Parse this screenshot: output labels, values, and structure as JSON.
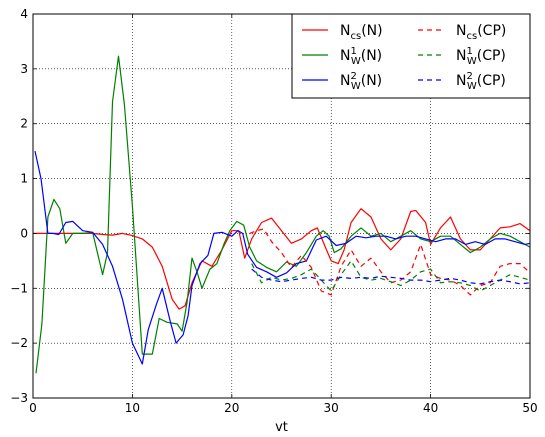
{
  "chart_data": {
    "type": "line",
    "xlabel": "vt",
    "ylabel": "",
    "xlim": [
      0,
      50
    ],
    "ylim": [
      -3,
      4
    ],
    "xticks": [
      "0",
      "10",
      "20",
      "30",
      "40",
      "50"
    ],
    "yticks": [
      "−3",
      "−2",
      "−1",
      "0",
      "1",
      "2",
      "3",
      "4"
    ],
    "grid": true,
    "legend_position": "top-right",
    "legend": [
      {
        "base": "N",
        "sub": "cs",
        "sup": "",
        "suffix": "(N)",
        "color": "#ff0000",
        "dash": "solid"
      },
      {
        "base": "N",
        "sub": "cs",
        "sup": "",
        "suffix": "(CP)",
        "color": "#ff0000",
        "dash": "dashed"
      },
      {
        "base": "N",
        "sub": "W",
        "sup": "1",
        "suffix": "(N)",
        "color": "#008000",
        "dash": "solid"
      },
      {
        "base": "N",
        "sub": "W",
        "sup": "1",
        "suffix": "(CP)",
        "color": "#008000",
        "dash": "dashed"
      },
      {
        "base": "N",
        "sub": "W",
        "sup": "2",
        "suffix": "(N)",
        "color": "#0000ff",
        "dash": "solid"
      },
      {
        "base": "N",
        "sub": "W",
        "sup": "2",
        "suffix": "(CP)",
        "color": "#0000ff",
        "dash": "dashed"
      }
    ],
    "series": [
      {
        "key": "ncs_n",
        "color": "#ff0000",
        "dash": "solid",
        "points": [
          [
            0,
            0
          ],
          [
            2,
            0
          ],
          [
            4,
            0
          ],
          [
            6,
            0
          ],
          [
            7,
            -0.02
          ],
          [
            8,
            -0.03
          ],
          [
            9,
            0
          ],
          [
            10,
            -0.04
          ],
          [
            11,
            -0.1
          ],
          [
            12,
            -0.25
          ],
          [
            13,
            -0.6
          ],
          [
            14,
            -1.2
          ],
          [
            14.7,
            -1.38
          ],
          [
            15.3,
            -1.32
          ],
          [
            16,
            -0.9
          ],
          [
            17,
            -0.5
          ],
          [
            18,
            -0.6
          ],
          [
            19,
            -0.3
          ],
          [
            20,
            0.05
          ],
          [
            20.7,
            0.05
          ],
          [
            21.3,
            -0.45
          ],
          [
            22,
            -0.1
          ],
          [
            23,
            0.2
          ],
          [
            24,
            0.28
          ],
          [
            25,
            0.05
          ],
          [
            26,
            -0.18
          ],
          [
            27,
            -0.1
          ],
          [
            28,
            0.05
          ],
          [
            28.6,
            0.1
          ],
          [
            29.3,
            -0.2
          ],
          [
            30,
            -0.5
          ],
          [
            30.7,
            -0.55
          ],
          [
            31.3,
            -0.3
          ],
          [
            32,
            0.2
          ],
          [
            33,
            0.45
          ],
          [
            34,
            0.3
          ],
          [
            35,
            -0.1
          ],
          [
            36,
            -0.3
          ],
          [
            37,
            -0.1
          ],
          [
            38,
            0.4
          ],
          [
            38.5,
            0.42
          ],
          [
            39.5,
            0.2
          ],
          [
            40,
            -0.2
          ],
          [
            41,
            0.1
          ],
          [
            42,
            0.3
          ],
          [
            43,
            -0.1
          ],
          [
            44,
            -0.3
          ],
          [
            45,
            -0.3
          ],
          [
            46,
            -0.1
          ],
          [
            47,
            0.1
          ],
          [
            48,
            0.12
          ],
          [
            49,
            0.18
          ],
          [
            50,
            0.05
          ]
        ]
      },
      {
        "key": "nw1_n",
        "color": "#008000",
        "dash": "solid",
        "points": [
          [
            0.3,
            -2.55
          ],
          [
            0.9,
            -1.65
          ],
          [
            1.5,
            0.3
          ],
          [
            2.1,
            0.62
          ],
          [
            2.7,
            0.45
          ],
          [
            3.3,
            -0.18
          ],
          [
            4,
            0
          ],
          [
            5,
            0
          ],
          [
            6,
            0.02
          ],
          [
            7,
            -0.75
          ],
          [
            7.5,
            -0.35
          ],
          [
            8,
            2.4
          ],
          [
            8.6,
            3.23
          ],
          [
            9.2,
            2.35
          ],
          [
            10,
            0.5
          ],
          [
            11,
            -2.2
          ],
          [
            12,
            -2.2
          ],
          [
            12.7,
            -1.55
          ],
          [
            13.5,
            -1.62
          ],
          [
            14.5,
            -1.65
          ],
          [
            15,
            -1.78
          ],
          [
            15.5,
            -1.25
          ],
          [
            16,
            -0.45
          ],
          [
            16.5,
            -0.7
          ],
          [
            17,
            -1.0
          ],
          [
            17.8,
            -0.65
          ],
          [
            18.5,
            -0.55
          ],
          [
            19.2,
            -0.2
          ],
          [
            19.8,
            0.05
          ],
          [
            20.5,
            0.22
          ],
          [
            21.2,
            0.15
          ],
          [
            21.8,
            -0.25
          ],
          [
            22.5,
            -0.5
          ],
          [
            23.5,
            -0.62
          ],
          [
            24.5,
            -0.7
          ],
          [
            25.5,
            -0.52
          ],
          [
            26.5,
            -0.6
          ],
          [
            27.5,
            -0.35
          ],
          [
            28.5,
            -0.05
          ],
          [
            29.2,
            0.05
          ],
          [
            29.8,
            -0.05
          ],
          [
            30.3,
            -0.35
          ],
          [
            31,
            -0.28
          ],
          [
            32,
            -0.05
          ],
          [
            33,
            0.1
          ],
          [
            34,
            -0.05
          ],
          [
            35,
            0
          ],
          [
            36,
            -0.15
          ],
          [
            37,
            -0.05
          ],
          [
            38,
            0.05
          ],
          [
            39,
            -0.1
          ],
          [
            40,
            -0.15
          ],
          [
            41,
            -0.05
          ],
          [
            42,
            -0.05
          ],
          [
            43,
            -0.2
          ],
          [
            44,
            -0.35
          ],
          [
            45,
            -0.25
          ],
          [
            46,
            -0.1
          ],
          [
            47,
            0
          ],
          [
            48,
            -0.05
          ],
          [
            49,
            -0.15
          ],
          [
            50,
            -0.25
          ]
        ]
      },
      {
        "key": "nw2_n",
        "color": "#0000ff",
        "dash": "solid",
        "points": [
          [
            0.2,
            1.5
          ],
          [
            0.8,
            1.0
          ],
          [
            1.5,
            0
          ],
          [
            2,
            0
          ],
          [
            2.6,
            -0.02
          ],
          [
            3.3,
            0.2
          ],
          [
            4,
            0.22
          ],
          [
            5,
            0.05
          ],
          [
            6,
            0.02
          ],
          [
            7,
            -0.2
          ],
          [
            8,
            -0.6
          ],
          [
            9,
            -1.2
          ],
          [
            10,
            -2.0
          ],
          [
            11,
            -2.38
          ],
          [
            11.6,
            -1.75
          ],
          [
            12.4,
            -1.3
          ],
          [
            13,
            -1.0
          ],
          [
            13.8,
            -1.6
          ],
          [
            14.4,
            -2.0
          ],
          [
            15.1,
            -1.85
          ],
          [
            15.6,
            -1.5
          ],
          [
            16,
            -0.95
          ],
          [
            16.8,
            -0.55
          ],
          [
            17.6,
            -0.4
          ],
          [
            18.2,
            0
          ],
          [
            19,
            0.02
          ],
          [
            20,
            -0.05
          ],
          [
            20.6,
            0.05
          ],
          [
            21.1,
            0
          ],
          [
            21.6,
            -0.38
          ],
          [
            22.5,
            -0.62
          ],
          [
            23.5,
            -0.7
          ],
          [
            24.5,
            -0.8
          ],
          [
            25.5,
            -0.72
          ],
          [
            26.5,
            -0.55
          ],
          [
            27.5,
            -0.5
          ],
          [
            28.5,
            -0.12
          ],
          [
            29.5,
            -0.05
          ],
          [
            30.5,
            -0.22
          ],
          [
            31.5,
            -0.18
          ],
          [
            32.5,
            -0.05
          ],
          [
            33.5,
            -0.08
          ],
          [
            34.5,
            -0.05
          ],
          [
            35.5,
            -0.05
          ],
          [
            36.5,
            -0.1
          ],
          [
            37.5,
            -0.05
          ],
          [
            38.5,
            -0.05
          ],
          [
            39.5,
            -0.1
          ],
          [
            40.5,
            -0.15
          ],
          [
            41.5,
            -0.1
          ],
          [
            42.5,
            -0.1
          ],
          [
            43.5,
            -0.2
          ],
          [
            44.5,
            -0.15
          ],
          [
            45.5,
            -0.2
          ],
          [
            46.5,
            -0.1
          ],
          [
            47.5,
            -0.1
          ],
          [
            48.5,
            -0.15
          ],
          [
            49.5,
            -0.2
          ],
          [
            50,
            -0.18
          ]
        ]
      },
      {
        "key": "ncs_cp",
        "color": "#ff0000",
        "dash": "dashed",
        "points": [
          [
            21.8,
            0
          ],
          [
            22.5,
            0.05
          ],
          [
            23.2,
            0.08
          ],
          [
            24,
            -0.15
          ],
          [
            25,
            -0.35
          ],
          [
            26,
            -0.62
          ],
          [
            27,
            -0.4
          ],
          [
            28,
            -0.62
          ],
          [
            29,
            -1.05
          ],
          [
            30,
            -1.12
          ],
          [
            31,
            -0.6
          ],
          [
            32,
            -0.3
          ],
          [
            33,
            -0.6
          ],
          [
            34,
            -0.45
          ],
          [
            35,
            -0.7
          ],
          [
            36,
            -0.9
          ],
          [
            37,
            -0.85
          ],
          [
            38,
            -0.7
          ],
          [
            39,
            -0.2
          ],
          [
            40,
            -0.75
          ],
          [
            41,
            -0.82
          ],
          [
            42,
            -0.85
          ],
          [
            43,
            -0.95
          ],
          [
            44,
            -1.12
          ],
          [
            45,
            -0.95
          ],
          [
            46,
            -0.9
          ],
          [
            47,
            -0.6
          ],
          [
            48,
            -0.55
          ],
          [
            49,
            -0.55
          ],
          [
            50,
            -0.72
          ]
        ]
      },
      {
        "key": "nw1_cp",
        "color": "#008000",
        "dash": "dashed",
        "points": [
          [
            22,
            -0.55
          ],
          [
            23,
            -0.9
          ],
          [
            24,
            -0.8
          ],
          [
            25,
            -0.85
          ],
          [
            26,
            -0.82
          ],
          [
            27,
            -0.75
          ],
          [
            28,
            -0.65
          ],
          [
            29,
            -0.85
          ],
          [
            30,
            -1.05
          ],
          [
            31,
            -0.75
          ],
          [
            32,
            -0.5
          ],
          [
            33,
            -0.8
          ],
          [
            34,
            -0.85
          ],
          [
            35,
            -0.82
          ],
          [
            36,
            -0.88
          ],
          [
            37,
            -0.95
          ],
          [
            38,
            -0.85
          ],
          [
            39,
            -0.7
          ],
          [
            40,
            -0.65
          ],
          [
            41,
            -0.9
          ],
          [
            42,
            -0.88
          ],
          [
            43,
            -0.9
          ],
          [
            44,
            -0.95
          ],
          [
            45,
            -1.05
          ],
          [
            46,
            -0.95
          ],
          [
            47,
            -0.85
          ],
          [
            48,
            -0.75
          ],
          [
            49,
            -0.8
          ],
          [
            50,
            -0.85
          ]
        ]
      },
      {
        "key": "nw2_cp",
        "color": "#0000ff",
        "dash": "dashed",
        "points": [
          [
            22,
            -0.65
          ],
          [
            23,
            -0.8
          ],
          [
            24,
            -0.85
          ],
          [
            25,
            -0.88
          ],
          [
            26,
            -0.85
          ],
          [
            27,
            -0.82
          ],
          [
            28,
            -0.8
          ],
          [
            29,
            -0.85
          ],
          [
            30,
            -0.85
          ],
          [
            31,
            -0.8
          ],
          [
            32,
            -0.82
          ],
          [
            33,
            -0.8
          ],
          [
            34,
            -0.82
          ],
          [
            35,
            -0.78
          ],
          [
            36,
            -0.8
          ],
          [
            37,
            -0.82
          ],
          [
            38,
            -0.85
          ],
          [
            39,
            -0.85
          ],
          [
            40,
            -0.88
          ],
          [
            41,
            -0.85
          ],
          [
            42,
            -0.82
          ],
          [
            43,
            -0.85
          ],
          [
            44,
            -0.9
          ],
          [
            45,
            -0.92
          ],
          [
            46,
            -0.88
          ],
          [
            47,
            -0.85
          ],
          [
            48,
            -0.88
          ],
          [
            49,
            -0.92
          ],
          [
            50,
            -0.9
          ]
        ]
      }
    ]
  }
}
